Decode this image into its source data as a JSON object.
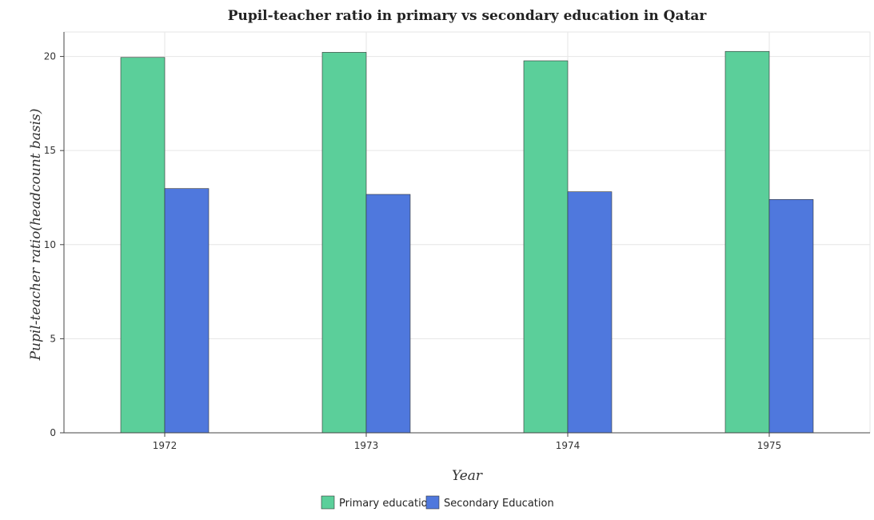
{
  "chart_data": {
    "type": "bar",
    "title": "Pupil-teacher ratio in primary vs secondary education in Qatar",
    "xlabel": "Year",
    "ylabel": "Pupil-teacher ratio(headcount basis)",
    "categories": [
      "1972",
      "1973",
      "1974",
      "1975"
    ],
    "series": [
      {
        "name": "Primary education",
        "color": "#5bcf9a",
        "values": [
          19.95,
          20.22,
          19.77,
          20.27
        ]
      },
      {
        "name": "Secondary Education",
        "color": "#4f78dd",
        "values": [
          12.98,
          12.67,
          12.81,
          12.4
        ]
      }
    ],
    "yticks": [
      0,
      5,
      10,
      15,
      20
    ],
    "ylim": [
      0,
      21.3
    ],
    "grid": true,
    "legend_position": "bottom-center"
  }
}
